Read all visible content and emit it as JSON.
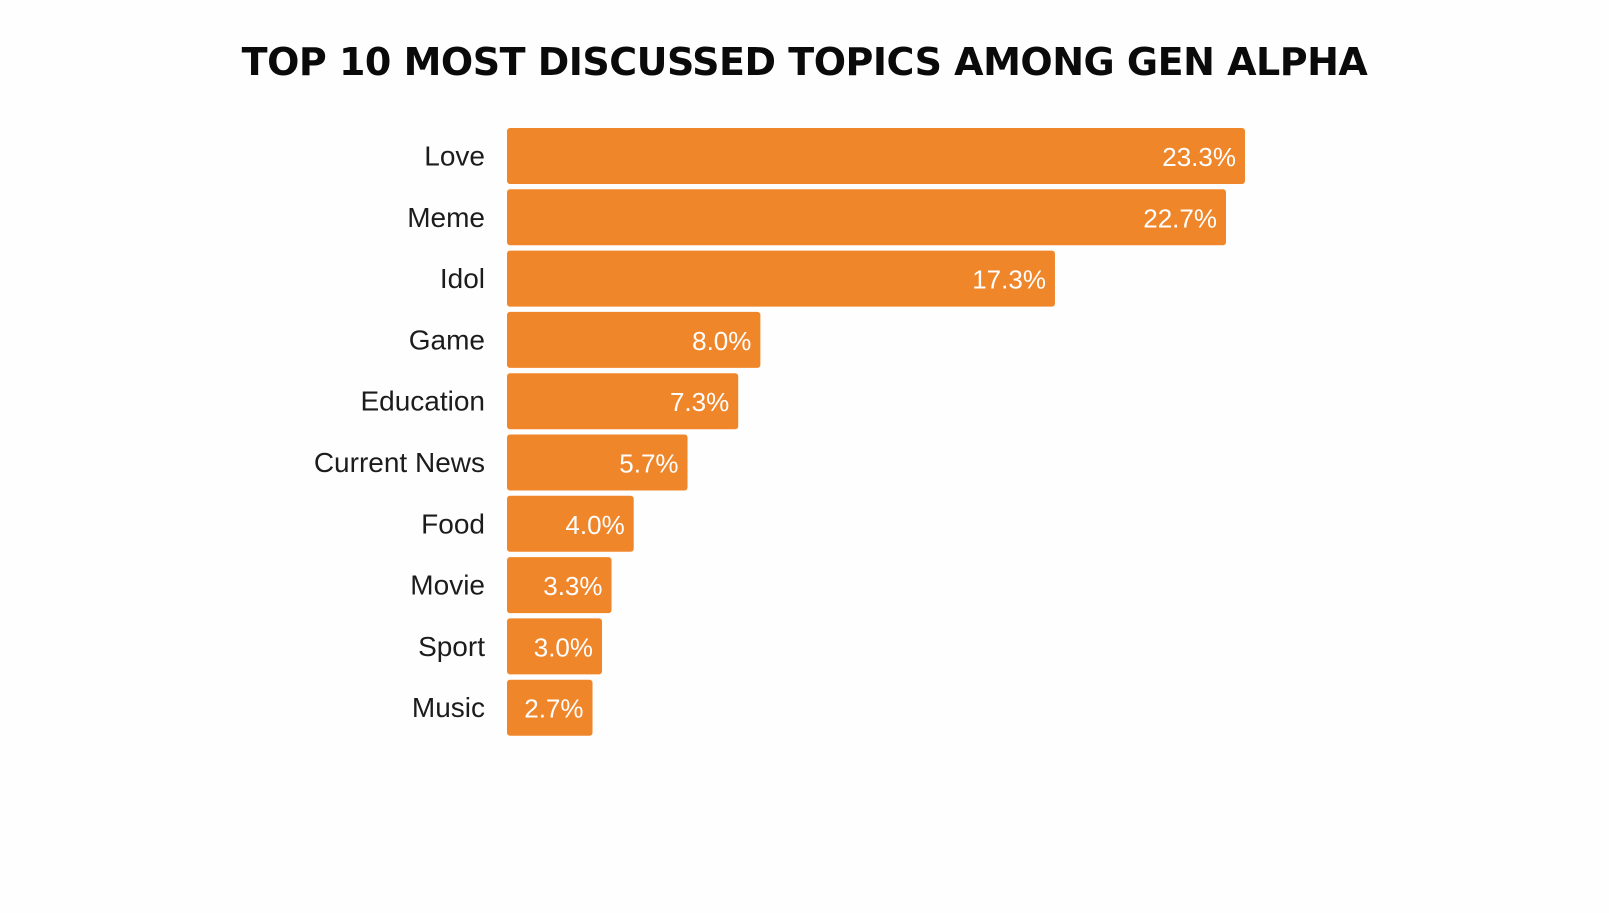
{
  "chart_data": {
    "type": "bar",
    "orientation": "horizontal",
    "title": "TOP 10 MOST DISCUSSED TOPICS AMONG GEN ALPHA",
    "xlabel": "",
    "ylabel": "",
    "categories": [
      "Love",
      "Meme",
      "Idol",
      "Game",
      "Education",
      "Current News",
      "Food",
      "Movie",
      "Sport",
      "Music"
    ],
    "values": [
      23.3,
      22.7,
      17.3,
      8.0,
      7.3,
      5.7,
      4.0,
      3.3,
      3.0,
      2.7
    ],
    "value_labels": [
      "23.3%",
      "22.7%",
      "17.3%",
      "8.0%",
      "7.3%",
      "5.7%",
      "4.0%",
      "3.3%",
      "3.0%",
      "2.7%"
    ],
    "unit": "%",
    "xlim": [
      0,
      23.3
    ],
    "grid": false,
    "legend": "none",
    "bar_color": "#F0862A"
  }
}
